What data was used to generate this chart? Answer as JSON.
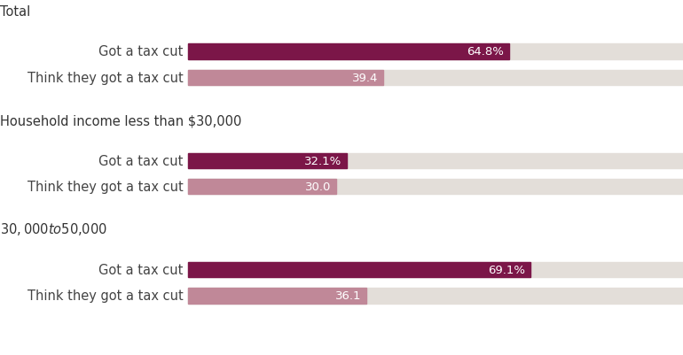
{
  "groups": [
    {
      "header": "Total",
      "bars": [
        {
          "label": "Got a tax cut",
          "value": 64.8,
          "show_pct": true
        },
        {
          "label": "Think they got a tax cut",
          "value": 39.4,
          "show_pct": false
        }
      ]
    },
    {
      "header": "Household income less than $30,000",
      "bars": [
        {
          "label": "Got a tax cut",
          "value": 32.1,
          "show_pct": true
        },
        {
          "label": "Think they got a tax cut",
          "value": 30.0,
          "show_pct": false
        }
      ]
    },
    {
      "header": "$30,000 to $50,000",
      "bars": [
        {
          "label": "Got a tax cut",
          "value": 69.1,
          "show_pct": true
        },
        {
          "label": "Think they got a tax cut",
          "value": 36.1,
          "show_pct": false
        }
      ]
    }
  ],
  "max_value": 100,
  "bar_color_dark": "#7B1648",
  "bar_color_light": "#C08898",
  "bg_color": "#E3DED9",
  "chart_bg": "#FFFFFF",
  "header_color": "#333333",
  "bar_label_color": "#444444",
  "bar_height": 0.32,
  "font_size_label": 10.5,
  "font_size_header": 10.5,
  "font_size_value": 9.5
}
